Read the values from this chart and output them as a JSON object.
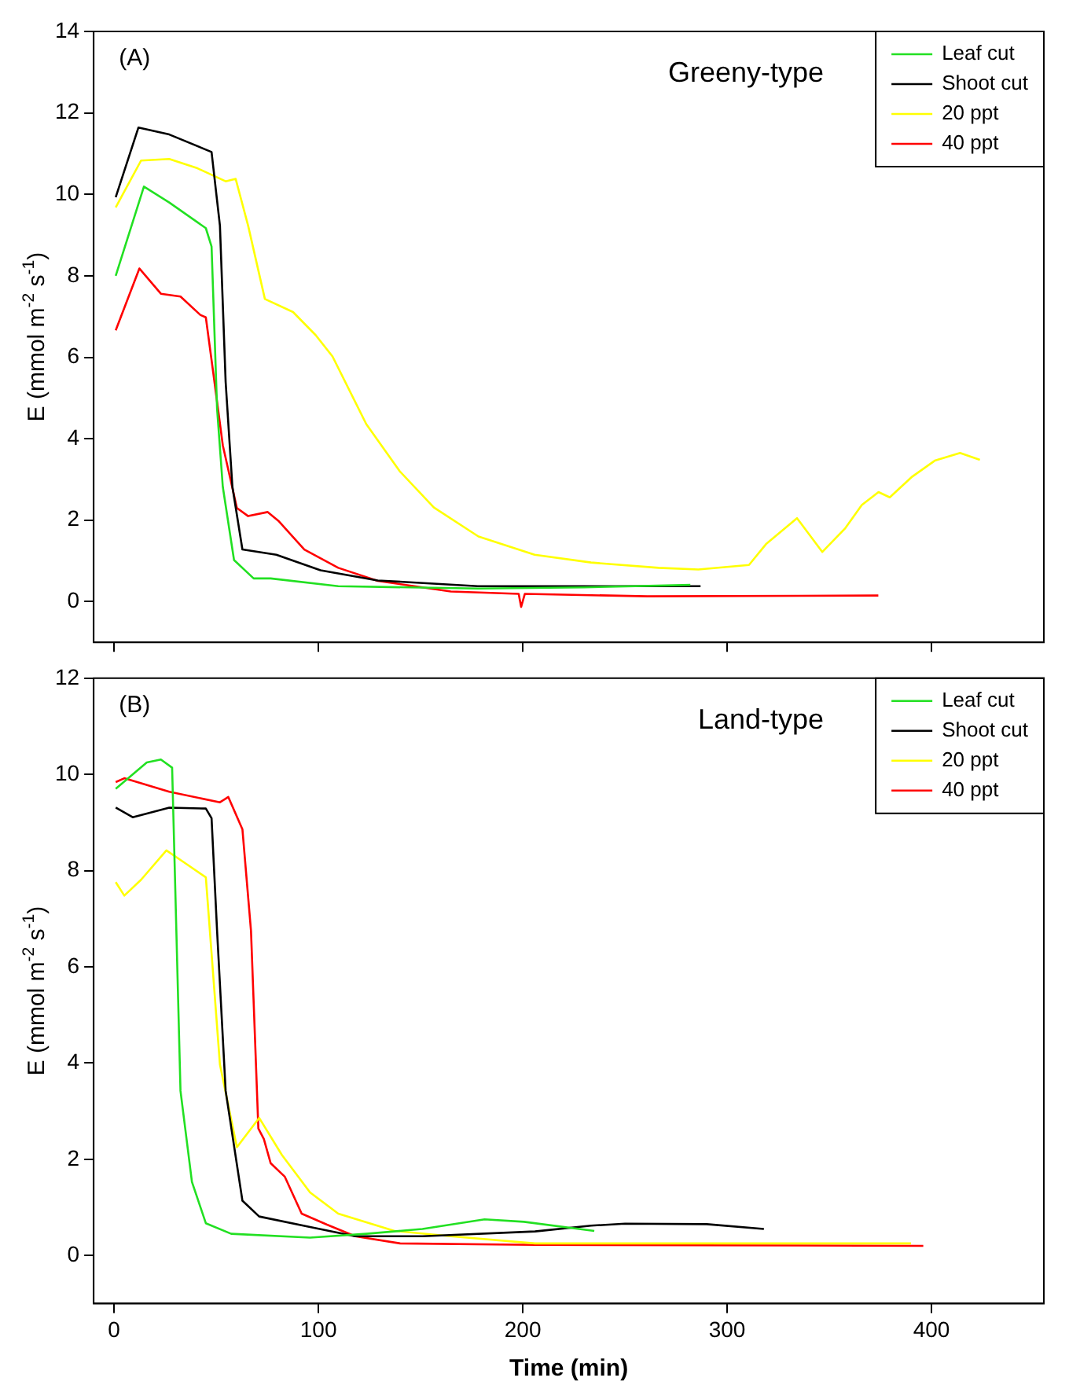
{
  "chart_data": [
    {
      "type": "line",
      "ylabel": "E (mmol m$^{-2}$ s$^{-1}$)",
      "annotations": [
        "(A)",
        "Greeny-type"
      ],
      "xlim": [
        -10,
        455
      ],
      "xticks": [
        0,
        100,
        200,
        300,
        400
      ],
      "ylim": [
        -1,
        14
      ],
      "yticks": [
        0,
        2,
        4,
        6,
        8,
        10,
        12,
        14
      ],
      "tick_labels": "y",
      "legend": "top right",
      "marker": "none",
      "line_style": "solid",
      "series": [
        {
          "name": "Leaf cut",
          "color": "#22e022",
          "x": [
            0.8,
            14.6,
            27,
            44.9,
            47.7,
            50.4,
            53.2,
            58.7,
            68.3,
            76.6,
            109.7,
            178,
            230,
            282
          ],
          "values": [
            8.0,
            10.19,
            9.8,
            9.17,
            8.72,
            4.74,
            2.82,
            1.02,
            0.57,
            0.57,
            0.38,
            0.32,
            0.35,
            0.41
          ]
        },
        {
          "name": "Shoot cut",
          "color": "#000000",
          "x": [
            0.8,
            11.9,
            27,
            47.7,
            51.8,
            54.6,
            57.9,
            62.8,
            79.4,
            101,
            129,
            178,
            287
          ],
          "values": [
            9.93,
            11.64,
            11.47,
            11.04,
            9.23,
            5.39,
            2.82,
            1.28,
            1.15,
            0.77,
            0.52,
            0.38,
            0.38
          ]
        },
        {
          "name": "20 ppt",
          "color": "#ffff00",
          "x": [
            0.8,
            13.2,
            27,
            40.8,
            54.6,
            59.5,
            65.6,
            73.8,
            87.6,
            98.7,
            106.9,
            123.4,
            139.8,
            156.5,
            178.3,
            205.8,
            233.4,
            266.4,
            285.9,
            310.7,
            319,
            334.2,
            346.6,
            357.6,
            365.9,
            374.1,
            379.6,
            390.6,
            401.6,
            414,
            423.7
          ],
          "values": [
            9.68,
            10.83,
            10.87,
            10.64,
            10.32,
            10.38,
            9.23,
            7.43,
            7.11,
            6.54,
            6.02,
            4.36,
            3.2,
            2.31,
            1.6,
            1.15,
            0.96,
            0.83,
            0.79,
            0.9,
            1.41,
            2.05,
            1.22,
            1.79,
            2.37,
            2.69,
            2.56,
            3.07,
            3.46,
            3.65,
            3.48
          ]
        },
        {
          "name": "40 ppt",
          "color": "#ff0000",
          "x": [
            0.8,
            12.4,
            22.9,
            32.5,
            42.2,
            44.9,
            48.5,
            53.2,
            60.1,
            65.6,
            75.2,
            80.7,
            93.1,
            109.7,
            129,
            164.8,
            198,
            199.2,
            201,
            261,
            374
          ],
          "values": [
            6.66,
            8.18,
            7.56,
            7.49,
            7.04,
            6.98,
            5.63,
            3.84,
            2.3,
            2.1,
            2.2,
            1.97,
            1.28,
            0.83,
            0.51,
            0.25,
            0.19,
            -0.13,
            0.19,
            0.13,
            0.15
          ]
        }
      ]
    },
    {
      "type": "line",
      "xlabel": "Time (min)",
      "ylabel": "E (mmol m$^{-2}$ s$^{-1}$)",
      "annotations": [
        "(B)",
        "Land-type"
      ],
      "xlim": [
        -10,
        455
      ],
      "xticks": [
        0,
        100,
        200,
        300,
        400
      ],
      "ylim": [
        -1,
        12
      ],
      "yticks": [
        0,
        2,
        4,
        6,
        8,
        10,
        12
      ],
      "legend": "top right",
      "marker": "none",
      "line_style": "solid",
      "series": [
        {
          "name": "Leaf cut",
          "color": "#22e022",
          "x": [
            0.8,
            16,
            22.9,
            28.4,
            29.8,
            32.5,
            38.1,
            44.9,
            57.3,
            95.9,
            123.4,
            150.9,
            181.3,
            200.6,
            235
          ],
          "values": [
            9.7,
            10.25,
            10.31,
            10.14,
            7.86,
            3.42,
            1.53,
            0.67,
            0.45,
            0.37,
            0.45,
            0.55,
            0.75,
            0.7,
            0.51
          ]
        },
        {
          "name": "Shoot cut",
          "color": "#000000",
          "x": [
            0.8,
            9.1,
            27,
            44.9,
            47.7,
            50.4,
            54.6,
            62.8,
            71,
            95.9,
            118,
            150.9,
            206,
            233.4,
            250,
            290,
            318
          ],
          "values": [
            9.31,
            9.11,
            9.31,
            9.29,
            9.09,
            6.75,
            3.42,
            1.14,
            0.81,
            0.59,
            0.4,
            0.4,
            0.5,
            0.62,
            0.66,
            0.65,
            0.55
          ]
        },
        {
          "name": "20 ppt",
          "color": "#ffff00",
          "x": [
            0.8,
            5,
            13.2,
            25.6,
            35.3,
            44.9,
            51.8,
            60.1,
            71,
            82.1,
            95.9,
            109.7,
            137.2,
            164.8,
            206,
            390
          ],
          "values": [
            7.76,
            7.48,
            7.81,
            8.42,
            8.14,
            7.86,
            3.97,
            2.25,
            2.86,
            2.09,
            1.31,
            0.87,
            0.51,
            0.4,
            0.25,
            0.25
          ]
        },
        {
          "name": "40 ppt",
          "color": "#ff0000",
          "x": [
            0.8,
            5,
            27,
            51.8,
            55.9,
            62.8,
            67,
            70.6,
            73.3,
            76.6,
            83.5,
            91.8,
            104.2,
            118,
            140,
            206,
            396
          ],
          "values": [
            9.84,
            9.92,
            9.64,
            9.42,
            9.53,
            8.86,
            6.75,
            2.64,
            2.42,
            1.92,
            1.64,
            0.87,
            0.64,
            0.4,
            0.25,
            0.22,
            0.2
          ]
        }
      ]
    }
  ]
}
